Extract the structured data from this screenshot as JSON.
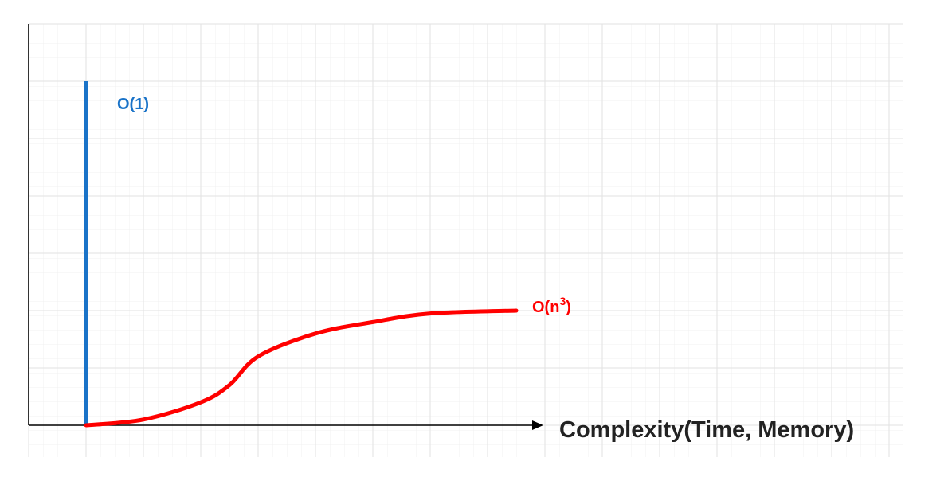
{
  "chart_data": {
    "type": "line",
    "title": "",
    "xlabel": "Complexity(Time, Memory)",
    "ylabel": "",
    "grid": true,
    "series": [
      {
        "name": "O(1)",
        "color": "#1a73c8",
        "orientation": "vertical",
        "x": [
          0,
          0
        ],
        "y": [
          0,
          6
        ]
      },
      {
        "name": "O(n3)",
        "color": "#ff0000",
        "x": [
          0,
          1,
          2,
          2.5,
          3,
          4,
          5,
          6,
          7.5
        ],
        "y": [
          0,
          0.1,
          0.4,
          0.7,
          1.2,
          1.6,
          1.8,
          1.95,
          2.0
        ]
      }
    ],
    "annotations": [
      {
        "text": "O(1)",
        "series": 0,
        "color": "#1a73c8"
      },
      {
        "text": "O(n",
        "superscript": "3",
        "suffix": ")",
        "series": 1,
        "color": "#ff0000"
      }
    ]
  }
}
